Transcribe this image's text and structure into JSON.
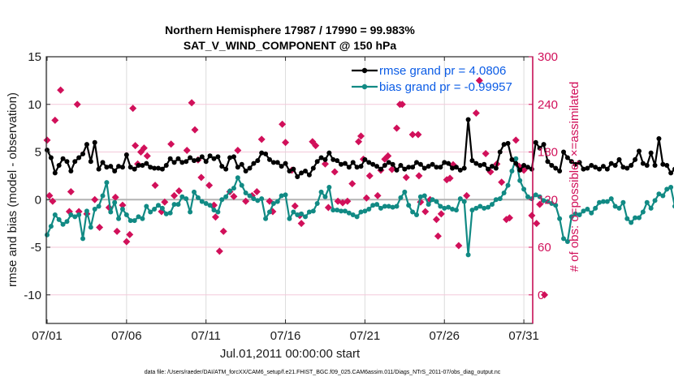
{
  "chart_data": {
    "type": "line",
    "title": "Northern Hemisphere 17987 / 17990 = 99.983%",
    "subtitle": "SAT_V_WIND_COMPONENT @ 150 hPa",
    "xlabel": "Jul.01,2011 00:00:00 start",
    "ylabel": "rmse and bias (model - observation)",
    "ylabel_right": "# of obs: o=possible; ×=assimilated",
    "footnote": "data file: /Users/raeder/DAI/ATM_forcXX/CAM6_setup/f.e21.FHIST_BGC.f09_025.CAM6assim.011/Diags_NTrS_2011-07/obs_diag_output.nc",
    "x_range_days": [
      0,
      31.5
    ],
    "x_ticks": [
      {
        "day": 0,
        "label": "07/01"
      },
      {
        "day": 5,
        "label": "07/06"
      },
      {
        "day": 10,
        "label": "07/11"
      },
      {
        "day": 15,
        "label": "07/16"
      },
      {
        "day": 20,
        "label": "07/21"
      },
      {
        "day": 25,
        "label": "07/26"
      },
      {
        "day": 30,
        "label": "07/31"
      }
    ],
    "ylim": [
      -13,
      15
    ],
    "y_ticks": [
      15,
      10,
      5,
      0,
      -5,
      -10
    ],
    "ylim_right": [
      -36,
      300
    ],
    "y_ticks_right": [
      300,
      240,
      180,
      120,
      60,
      0
    ],
    "grid": true,
    "zero_line": 0,
    "x_step_days": 0.25,
    "legend": {
      "placement": "top-right",
      "entries": [
        {
          "label": "rmse grand pr = 4.0806",
          "series": "rmse"
        },
        {
          "label": "bias grand pr = -0.99957",
          "series": "bias"
        }
      ]
    },
    "series": [
      {
        "name": "rmse",
        "color": "#000000",
        "axis": "left",
        "values": [
          5.2,
          4.4,
          2.8,
          3.6,
          4.3,
          4.0,
          3.0,
          4.0,
          4.4,
          4.8,
          5.8,
          4.0,
          6.0,
          3.2,
          3.9,
          3.4,
          3.5,
          3.0,
          3.5,
          3.4,
          4.7,
          3.4,
          3.2,
          3.6,
          3.6,
          3.8,
          3.4,
          3.3,
          3.3,
          3.2,
          3.6,
          4.3,
          3.9,
          4.3,
          3.9,
          4.0,
          4.4,
          4.1,
          4.2,
          4.5,
          4.0,
          4.6,
          4.3,
          4.5,
          3.5,
          3.2,
          4.4,
          4.5,
          3.4,
          3.7,
          3.0,
          3.3,
          3.8,
          4.1,
          4.9,
          4.8,
          4.2,
          3.9,
          3.9,
          3.5,
          3.8,
          3.0,
          3.2,
          2.4,
          2.8,
          3.0,
          2.6,
          3.3,
          4.0,
          4.4,
          4.2,
          4.9,
          4.2,
          4.1,
          3.7,
          3.8,
          3.4,
          3.9,
          3.4,
          3.5,
          4.2,
          3.9,
          3.7,
          3.5,
          3.2,
          3.6,
          3.9,
          3.7,
          3.1,
          3.6,
          3.2,
          3.4,
          3.4,
          3.9,
          3.7,
          3.3,
          3.5,
          3.7,
          3.4,
          3.4,
          3.9,
          3.8,
          3.3,
          3.4,
          3.1,
          3.3,
          8.4,
          4.1,
          3.8,
          3.6,
          3.7,
          3.2,
          3.5,
          3.3,
          5.0,
          5.8,
          5.9,
          4.2,
          3.8,
          3.1,
          3.6,
          3.4,
          3.2,
          6.0,
          5.4,
          5.8,
          4.0,
          3.6,
          3.3,
          3.0,
          5.0,
          4.4,
          4.0,
          3.7,
          3.9,
          3.2,
          3.3,
          3.6,
          3.4,
          3.2,
          3.5,
          3.2,
          3.8,
          3.6,
          4.2,
          3.4,
          3.3,
          3.6,
          4.2,
          5.1,
          3.8,
          3.6,
          4.9,
          3.6,
          6.4,
          3.7,
          3.6,
          2.8,
          3.2,
          3.3,
          3.8,
          3.5,
          4.1,
          3.7,
          3.6,
          3.5,
          2.9,
          3.3,
          3.4,
          3.4,
          3.2,
          3.8,
          3.3,
          3.8,
          3.4,
          4.2,
          3.0,
          3.2,
          3.2,
          4.3,
          4.4,
          4.1,
          3.9,
          3.8
        ]
      },
      {
        "name": "bias",
        "color": "#118a84",
        "axis": "left",
        "values": [
          -3.7,
          -2.8,
          -1.6,
          -2.1,
          -2.6,
          -2.3,
          -1.6,
          -1.8,
          -1.6,
          -4.1,
          -1.2,
          -2.9,
          -1.0,
          -0.7,
          0.4,
          1.8,
          -1.3,
          -0.3,
          -2.0,
          -1.0,
          -1.6,
          -2.2,
          -2.2,
          -1.8,
          -2.0,
          -0.7,
          -1.3,
          -1.0,
          -0.6,
          -0.9,
          -1.5,
          -1.4,
          -0.5,
          -0.5,
          0.3,
          0.1,
          -1.3,
          0.8,
          0.2,
          -0.2,
          -0.4,
          -0.6,
          -1.1,
          -1.3,
          0.0,
          0.3,
          0.9,
          1.2,
          2.3,
          1.5,
          0.7,
          0.4,
          0.1,
          -0.1,
          0.1,
          -2.0,
          -1.3,
          -0.4,
          -0.2,
          0.4,
          0.5,
          -2.0,
          -1.3,
          -1.6,
          -1.5,
          -1.8,
          -1.3,
          -1.2,
          -0.4,
          0.8,
          0.3,
          1.3,
          -1.1,
          -1.1,
          -1.2,
          -1.2,
          -1.4,
          -1.6,
          -1.8,
          -1.3,
          -1.2,
          -1.0,
          -0.6,
          -0.5,
          -0.9,
          -0.7,
          -0.7,
          -0.8,
          -0.7,
          0.2,
          0.8,
          -0.6,
          -1.3,
          -1.6,
          0.3,
          0.4,
          -0.5,
          0.0,
          -0.2,
          -0.7,
          -0.9,
          -0.8,
          -1.0,
          -1.1,
          0.1,
          -0.2,
          -5.8,
          -1.1,
          -0.9,
          -0.7,
          -0.9,
          -0.8,
          -0.5,
          0.0,
          0.1,
          0.7,
          1.5,
          3.0,
          4.3,
          2.0,
          1.1,
          0.3,
          0.1,
          0.5,
          0.3,
          -0.1,
          -0.2,
          -0.4,
          -0.6,
          -2.0,
          -4.1,
          -4.4,
          -1.8,
          -1.5,
          -1.6,
          -1.2,
          -1.0,
          -1.4,
          -0.9,
          -0.3,
          -0.2,
          -0.2,
          0.1,
          -0.7,
          -0.9,
          -0.3,
          -2.0,
          -2.4,
          -1.9,
          -1.9,
          -1.3,
          -0.3,
          -0.9,
          -0.1,
          0.6,
          0.4,
          1.1,
          1.3,
          -0.7,
          -1.3,
          -0.5,
          -2.0,
          -1.6,
          -2.4,
          -2.8,
          -1.8,
          -0.9,
          -0.4,
          -1.7,
          -0.8,
          0.0,
          -1.1,
          -1.8,
          -1.5,
          -0.6,
          -1.4,
          -2.0,
          -0.5,
          -2.5,
          -2.6,
          -1.8,
          -1.2
        ]
      },
      {
        "name": "obs_possible_assimilated",
        "color": "#d1105a",
        "axis": "right",
        "marker": "diamond",
        "day_values": [
          [
            0.0,
            195
          ],
          [
            0.15,
            125
          ],
          [
            0.35,
            118
          ],
          [
            0.5,
            220
          ],
          [
            0.85,
            258
          ],
          [
            1.4,
            105
          ],
          [
            1.5,
            130
          ],
          [
            1.9,
            240
          ],
          [
            2.0,
            105
          ],
          [
            2.5,
            102
          ],
          [
            3.0,
            120
          ],
          [
            3.3,
            85
          ],
          [
            3.9,
            110
          ],
          [
            4.3,
            123
          ],
          [
            4.4,
            80
          ],
          [
            4.75,
            113
          ],
          [
            5.0,
            67
          ],
          [
            5.2,
            76
          ],
          [
            5.4,
            235
          ],
          [
            5.55,
            188
          ],
          [
            5.7,
            165
          ],
          [
            5.9,
            180
          ],
          [
            6.1,
            185
          ],
          [
            6.3,
            175
          ],
          [
            6.8,
            138
          ],
          [
            7.2,
            105
          ],
          [
            7.4,
            117
          ],
          [
            7.8,
            190
          ],
          [
            8.0,
            125
          ],
          [
            8.3,
            131
          ],
          [
            8.8,
            182
          ],
          [
            9.1,
            242
          ],
          [
            9.3,
            208
          ],
          [
            9.5,
            170
          ],
          [
            9.7,
            148
          ],
          [
            10.2,
            138
          ],
          [
            10.5,
            113
          ],
          [
            10.6,
            98
          ],
          [
            10.85,
            55
          ],
          [
            11.1,
            80
          ],
          [
            11.5,
            130
          ],
          [
            11.75,
            124
          ],
          [
            12.0,
            182
          ],
          [
            12.5,
            118
          ],
          [
            12.9,
            125
          ],
          [
            13.2,
            130
          ],
          [
            13.5,
            196
          ],
          [
            14.0,
            118
          ],
          [
            14.2,
            105
          ],
          [
            14.8,
            215
          ],
          [
            15.0,
            192
          ],
          [
            15.4,
            157
          ],
          [
            15.6,
            112
          ],
          [
            15.9,
            100
          ],
          [
            16.0,
            90
          ],
          [
            16.7,
            193
          ],
          [
            16.9,
            188
          ],
          [
            17.5,
            165
          ],
          [
            17.7,
            110
          ],
          [
            18.1,
            155
          ],
          [
            18.3,
            118
          ],
          [
            18.6,
            116
          ],
          [
            18.9,
            118
          ],
          [
            19.2,
            140
          ],
          [
            19.6,
            193
          ],
          [
            19.75,
            200
          ],
          [
            19.9,
            171
          ],
          [
            20.1,
            122
          ],
          [
            20.3,
            150
          ],
          [
            20.8,
            125
          ],
          [
            21.0,
            157
          ],
          [
            21.25,
            171
          ],
          [
            21.45,
            175
          ],
          [
            21.7,
            158
          ],
          [
            22.0,
            210
          ],
          [
            22.2,
            240
          ],
          [
            22.35,
            240
          ],
          [
            22.6,
            148
          ],
          [
            23.0,
            202
          ],
          [
            23.35,
            202
          ],
          [
            23.4,
            150
          ],
          [
            23.5,
            117
          ],
          [
            23.8,
            105
          ],
          [
            24.1,
            120
          ],
          [
            24.5,
            95
          ],
          [
            24.6,
            74
          ],
          [
            24.8,
            102
          ],
          [
            25.15,
            145
          ],
          [
            25.35,
            147
          ],
          [
            25.55,
            164
          ],
          [
            25.9,
            62
          ],
          [
            26.4,
            125
          ],
          [
            27.0,
            229
          ],
          [
            27.2,
            270
          ],
          [
            27.6,
            178
          ],
          [
            27.9,
            155
          ],
          [
            28.3,
            165
          ],
          [
            28.6,
            142
          ],
          [
            28.9,
            95
          ],
          [
            29.1,
            97
          ],
          [
            29.5,
            195
          ],
          [
            29.7,
            162
          ],
          [
            30.0,
            157
          ],
          [
            30.5,
            100
          ],
          [
            30.8,
            90
          ],
          [
            31.0,
            114
          ],
          [
            31.3,
            0
          ]
        ]
      }
    ]
  }
}
